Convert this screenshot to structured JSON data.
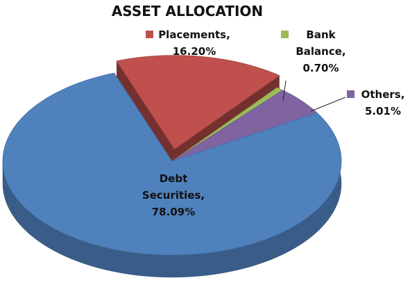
{
  "chart_data": {
    "type": "pie",
    "title": "ASSET ALLOCATION",
    "categories": [
      "Debt Securities,",
      "Placements,",
      "Bank Balance,",
      "Others,"
    ],
    "values": [
      78.09,
      16.2,
      0.7,
      5.01
    ],
    "value_labels": [
      "78.09%",
      "16.20%",
      "0.70%",
      "5.01%"
    ],
    "colors": [
      "#4f81bd",
      "#c0504d",
      "#9bbb59",
      "#8064a2"
    ]
  }
}
